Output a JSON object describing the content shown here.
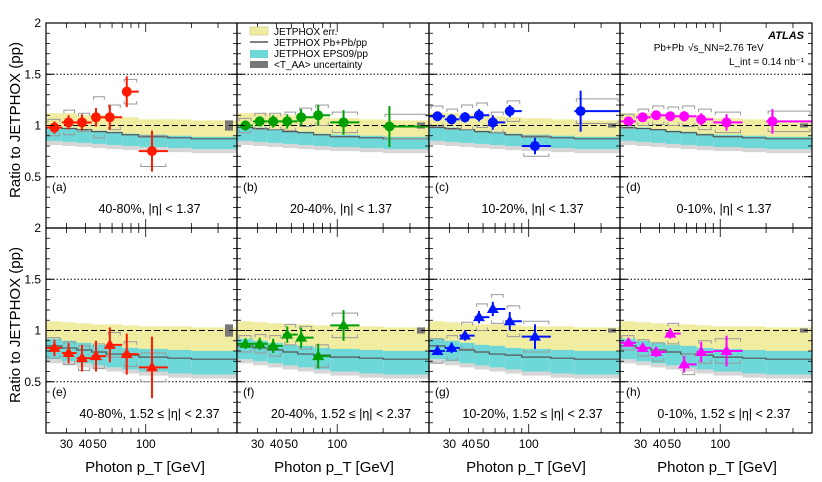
{
  "chart_data": {
    "type": "scatter",
    "title": "",
    "xlabel": "Photon p_T [GeV]",
    "ylabel": "Ratio to JETPHOX (pp)",
    "xscale": "log",
    "xlim": [
      22,
      400
    ],
    "ylim": [
      0,
      2
    ],
    "ytick_labels": [
      "0.5",
      "1",
      "1.5",
      "2"
    ],
    "xtick_labels": [
      "30",
      "40",
      "50",
      "100"
    ],
    "xtick_values": [
      30,
      40,
      50,
      100
    ],
    "x_bins": [
      [
        22,
        28
      ],
      [
        28,
        35
      ],
      [
        35,
        44
      ],
      [
        44,
        55
      ],
      [
        55,
        70
      ],
      [
        70,
        90
      ],
      [
        90,
        140
      ],
      [
        140,
        200
      ],
      [
        200,
        400
      ]
    ],
    "legend": {
      "entries": [
        "JETPHOX err.",
        "JETPHOX Pb+Pb/pp",
        "JETPHOX EPS09/pp",
        "<T_AA> uncertainty"
      ],
      "colors": [
        "#f0eca0",
        "#555555",
        "#6ed8d8",
        "#777777"
      ]
    },
    "atlas": {
      "label": "ATLAS",
      "system": "Pb+Pb",
      "energy": "√s_NN=2.76 TeV",
      "luminosity": "L_int = 0.14 nb⁻¹"
    },
    "panels": [
      {
        "tag": "(a)",
        "label": "40-80%, |η| < 1.37",
        "color": "#ff1a00",
        "marker": "circle",
        "x": [
          25,
          31,
          38,
          47,
          58,
          75,
          110
        ],
        "y": [
          0.98,
          1.03,
          1.03,
          1.08,
          1.08,
          1.33,
          0.75
        ],
        "yerr": [
          0.06,
          0.07,
          0.08,
          0.09,
          0.12,
          0.15,
          0.2
        ],
        "sys": [
          0.08,
          0.12,
          0.09,
          0.2,
          0.12,
          0.12,
          0.15
        ],
        "taa": 0.05,
        "jetphox_band": [
          [
            0.85,
            1.12
          ],
          [
            0.86,
            1.12
          ],
          [
            0.86,
            1.1
          ],
          [
            0.85,
            1.1
          ],
          [
            0.85,
            1.08
          ],
          [
            0.84,
            1.08
          ],
          [
            0.83,
            1.06
          ],
          [
            0.83,
            1.06
          ],
          [
            0.83,
            1.05
          ]
        ],
        "pbpb_line": [
          0.98,
          0.97,
          0.96,
          0.94,
          0.93,
          0.91,
          0.89,
          0.88,
          0.87
        ],
        "eps_band": [
          [
            0.85,
            0.99
          ],
          [
            0.84,
            0.98
          ],
          [
            0.83,
            0.96
          ],
          [
            0.82,
            0.95
          ],
          [
            0.81,
            0.94
          ],
          [
            0.8,
            0.92
          ],
          [
            0.79,
            0.91
          ],
          [
            0.78,
            0.9
          ],
          [
            0.77,
            0.89
          ]
        ]
      },
      {
        "tag": "(b)",
        "label": "20-40%, |η| < 1.37",
        "color": "#00a000",
        "marker": "circle",
        "x": [
          25,
          31,
          38,
          47,
          58,
          75,
          110,
          220
        ],
        "y": [
          1.0,
          1.04,
          1.04,
          1.04,
          1.08,
          1.1,
          1.03,
          0.99
        ],
        "yerr": [
          0.05,
          0.05,
          0.06,
          0.07,
          0.08,
          0.1,
          0.12,
          0.2
        ],
        "sys": [
          0.07,
          0.08,
          0.08,
          0.09,
          0.09,
          0.1,
          0.1,
          0.12
        ],
        "taa": 0.03,
        "jetphox_band": [
          [
            0.86,
            1.12
          ],
          [
            0.86,
            1.12
          ],
          [
            0.86,
            1.11
          ],
          [
            0.85,
            1.1
          ],
          [
            0.85,
            1.09
          ],
          [
            0.84,
            1.08
          ],
          [
            0.83,
            1.07
          ],
          [
            0.83,
            1.06
          ],
          [
            0.83,
            1.05
          ]
        ],
        "pbpb_line": [
          0.98,
          0.97,
          0.96,
          0.94,
          0.93,
          0.91,
          0.89,
          0.88,
          0.87
        ],
        "eps_band": [
          [
            0.85,
            0.99
          ],
          [
            0.84,
            0.98
          ],
          [
            0.83,
            0.96
          ],
          [
            0.82,
            0.95
          ],
          [
            0.81,
            0.94
          ],
          [
            0.8,
            0.92
          ],
          [
            0.79,
            0.91
          ],
          [
            0.78,
            0.9
          ],
          [
            0.77,
            0.89
          ]
        ]
      },
      {
        "tag": "(c)",
        "label": "10-20%, |η| < 1.37",
        "color": "#0014ff",
        "marker": "circle",
        "x": [
          25,
          31,
          38,
          47,
          58,
          75,
          110,
          220
        ],
        "y": [
          1.09,
          1.06,
          1.08,
          1.1,
          1.03,
          1.14,
          0.8,
          1.14
        ],
        "yerr": [
          0.04,
          0.05,
          0.05,
          0.06,
          0.07,
          0.06,
          0.08,
          0.2
        ],
        "sys": [
          0.1,
          0.1,
          0.12,
          0.12,
          0.1,
          0.1,
          0.1,
          0.12
        ],
        "taa": 0.02,
        "jetphox_band": [
          [
            0.86,
            1.12
          ],
          [
            0.86,
            1.12
          ],
          [
            0.86,
            1.11
          ],
          [
            0.85,
            1.1
          ],
          [
            0.85,
            1.09
          ],
          [
            0.84,
            1.08
          ],
          [
            0.83,
            1.07
          ],
          [
            0.83,
            1.06
          ],
          [
            0.83,
            1.05
          ]
        ],
        "pbpb_line": [
          0.98,
          0.97,
          0.96,
          0.94,
          0.93,
          0.91,
          0.89,
          0.88,
          0.87
        ],
        "eps_band": [
          [
            0.85,
            0.99
          ],
          [
            0.84,
            0.98
          ],
          [
            0.83,
            0.96
          ],
          [
            0.82,
            0.95
          ],
          [
            0.81,
            0.94
          ],
          [
            0.8,
            0.92
          ],
          [
            0.79,
            0.91
          ],
          [
            0.78,
            0.9
          ],
          [
            0.77,
            0.89
          ]
        ]
      },
      {
        "tag": "(d)",
        "label": "0-10%, |η| < 1.37",
        "color": "#ff00ff",
        "marker": "circle",
        "x": [
          25,
          31,
          38,
          47,
          58,
          75,
          110,
          220
        ],
        "y": [
          1.04,
          1.08,
          1.1,
          1.09,
          1.09,
          1.06,
          1.03,
          1.04
        ],
        "yerr": [
          0.03,
          0.03,
          0.03,
          0.04,
          0.05,
          0.06,
          0.08,
          0.12
        ],
        "sys": [
          0.07,
          0.08,
          0.09,
          0.09,
          0.1,
          0.1,
          0.1,
          0.1
        ],
        "taa": 0.02,
        "jetphox_band": [
          [
            0.86,
            1.12
          ],
          [
            0.86,
            1.12
          ],
          [
            0.86,
            1.11
          ],
          [
            0.85,
            1.1
          ],
          [
            0.85,
            1.09
          ],
          [
            0.84,
            1.08
          ],
          [
            0.83,
            1.07
          ],
          [
            0.83,
            1.06
          ],
          [
            0.83,
            1.05
          ]
        ],
        "pbpb_line": [
          0.98,
          0.97,
          0.96,
          0.94,
          0.93,
          0.91,
          0.89,
          0.88,
          0.87
        ],
        "eps_band": [
          [
            0.85,
            0.99
          ],
          [
            0.84,
            0.98
          ],
          [
            0.83,
            0.96
          ],
          [
            0.82,
            0.95
          ],
          [
            0.81,
            0.94
          ],
          [
            0.8,
            0.92
          ],
          [
            0.79,
            0.91
          ],
          [
            0.78,
            0.9
          ],
          [
            0.77,
            0.89
          ]
        ]
      },
      {
        "tag": "(e)",
        "label": "40-80%, 1.52 ≤ |η| < 2.37",
        "color": "#ff1a00",
        "marker": "triangle",
        "x": [
          25,
          31,
          38,
          47,
          58,
          75,
          110
        ],
        "y": [
          0.83,
          0.78,
          0.73,
          0.75,
          0.86,
          0.77,
          0.64
        ],
        "yerr": [
          0.08,
          0.1,
          0.13,
          0.15,
          0.17,
          0.2,
          0.3
        ],
        "sys": [
          0.1,
          0.11,
          0.12,
          0.12,
          0.12,
          0.12,
          0.14
        ],
        "taa": 0.06,
        "jetphox_band": [
          [
            0.8,
            1.09
          ],
          [
            0.79,
            1.08
          ],
          [
            0.78,
            1.07
          ],
          [
            0.77,
            1.06
          ],
          [
            0.76,
            1.06
          ],
          [
            0.75,
            1.05
          ],
          [
            0.74,
            1.04
          ],
          [
            0.73,
            1.04
          ],
          [
            0.72,
            1.03
          ]
        ],
        "pbpb_line": [
          0.85,
          0.83,
          0.81,
          0.79,
          0.77,
          0.76,
          0.74,
          0.73,
          0.72
        ],
        "eps_band": [
          [
            0.72,
            0.92
          ],
          [
            0.7,
            0.9
          ],
          [
            0.68,
            0.88
          ],
          [
            0.66,
            0.86
          ],
          [
            0.64,
            0.85
          ],
          [
            0.62,
            0.83
          ],
          [
            0.6,
            0.82
          ],
          [
            0.58,
            0.81
          ],
          [
            0.57,
            0.8
          ]
        ]
      },
      {
        "tag": "(f)",
        "label": "20-40%, 1.52 ≤ |η| < 2.37",
        "color": "#00a000",
        "marker": "triangle",
        "x": [
          25,
          31,
          38,
          47,
          58,
          75,
          110
        ],
        "y": [
          0.87,
          0.87,
          0.85,
          0.96,
          0.93,
          0.75,
          1.05
        ],
        "yerr": [
          0.05,
          0.06,
          0.07,
          0.08,
          0.1,
          0.12,
          0.15
        ],
        "sys": [
          0.08,
          0.09,
          0.1,
          0.1,
          0.11,
          0.11,
          0.12
        ],
        "taa": 0.03,
        "jetphox_band": [
          [
            0.8,
            1.09
          ],
          [
            0.79,
            1.08
          ],
          [
            0.78,
            1.07
          ],
          [
            0.77,
            1.06
          ],
          [
            0.76,
            1.06
          ],
          [
            0.75,
            1.05
          ],
          [
            0.74,
            1.04
          ],
          [
            0.73,
            1.04
          ],
          [
            0.72,
            1.03
          ]
        ],
        "pbpb_line": [
          0.85,
          0.83,
          0.81,
          0.79,
          0.77,
          0.76,
          0.74,
          0.73,
          0.72
        ],
        "eps_band": [
          [
            0.72,
            0.92
          ],
          [
            0.7,
            0.9
          ],
          [
            0.68,
            0.88
          ],
          [
            0.66,
            0.86
          ],
          [
            0.64,
            0.85
          ],
          [
            0.62,
            0.83
          ],
          [
            0.6,
            0.82
          ],
          [
            0.58,
            0.81
          ],
          [
            0.57,
            0.8
          ]
        ]
      },
      {
        "tag": "(g)",
        "label": "10-20%, 1.52 ≤ |η| < 2.37",
        "color": "#0014ff",
        "marker": "triangle",
        "x": [
          25,
          31,
          38,
          47,
          58,
          75,
          110
        ],
        "y": [
          0.8,
          0.83,
          0.95,
          1.13,
          1.21,
          1.09,
          0.94
        ],
        "yerr": [
          0.04,
          0.05,
          0.05,
          0.06,
          0.07,
          0.09,
          0.12
        ],
        "sys": [
          0.12,
          0.12,
          0.13,
          0.13,
          0.14,
          0.15,
          0.15
        ],
        "taa": 0.02,
        "jetphox_band": [
          [
            0.8,
            1.09
          ],
          [
            0.79,
            1.08
          ],
          [
            0.78,
            1.07
          ],
          [
            0.77,
            1.06
          ],
          [
            0.76,
            1.06
          ],
          [
            0.75,
            1.05
          ],
          [
            0.74,
            1.04
          ],
          [
            0.73,
            1.04
          ],
          [
            0.72,
            1.03
          ]
        ],
        "pbpb_line": [
          0.85,
          0.83,
          0.81,
          0.79,
          0.77,
          0.76,
          0.74,
          0.73,
          0.72
        ],
        "eps_band": [
          [
            0.72,
            0.92
          ],
          [
            0.7,
            0.9
          ],
          [
            0.68,
            0.88
          ],
          [
            0.66,
            0.86
          ],
          [
            0.64,
            0.85
          ],
          [
            0.62,
            0.83
          ],
          [
            0.6,
            0.82
          ],
          [
            0.58,
            0.81
          ],
          [
            0.57,
            0.8
          ]
        ]
      },
      {
        "tag": "(h)",
        "label": "0-10%, 1.52 ≤ |η| < 2.37",
        "color": "#ff00ff",
        "marker": "triangle",
        "x": [
          25,
          31,
          38,
          47,
          58,
          75,
          110
        ],
        "y": [
          0.88,
          0.83,
          0.79,
          0.97,
          0.67,
          0.79,
          0.8
        ],
        "yerr": [
          0.03,
          0.04,
          0.05,
          0.05,
          0.08,
          0.1,
          0.15
        ],
        "sys": [
          0.07,
          0.08,
          0.09,
          0.1,
          0.1,
          0.11,
          0.12
        ],
        "taa": 0.02,
        "jetphox_band": [
          [
            0.8,
            1.09
          ],
          [
            0.79,
            1.08
          ],
          [
            0.78,
            1.07
          ],
          [
            0.77,
            1.06
          ],
          [
            0.76,
            1.06
          ],
          [
            0.75,
            1.05
          ],
          [
            0.74,
            1.04
          ],
          [
            0.73,
            1.04
          ],
          [
            0.72,
            1.03
          ]
        ],
        "pbpb_line": [
          0.85,
          0.83,
          0.81,
          0.79,
          0.77,
          0.76,
          0.74,
          0.73,
          0.72
        ],
        "eps_band": [
          [
            0.72,
            0.92
          ],
          [
            0.7,
            0.9
          ],
          [
            0.68,
            0.88
          ],
          [
            0.66,
            0.86
          ],
          [
            0.64,
            0.85
          ],
          [
            0.62,
            0.83
          ],
          [
            0.6,
            0.82
          ],
          [
            0.58,
            0.81
          ],
          [
            0.57,
            0.8
          ]
        ]
      }
    ]
  }
}
